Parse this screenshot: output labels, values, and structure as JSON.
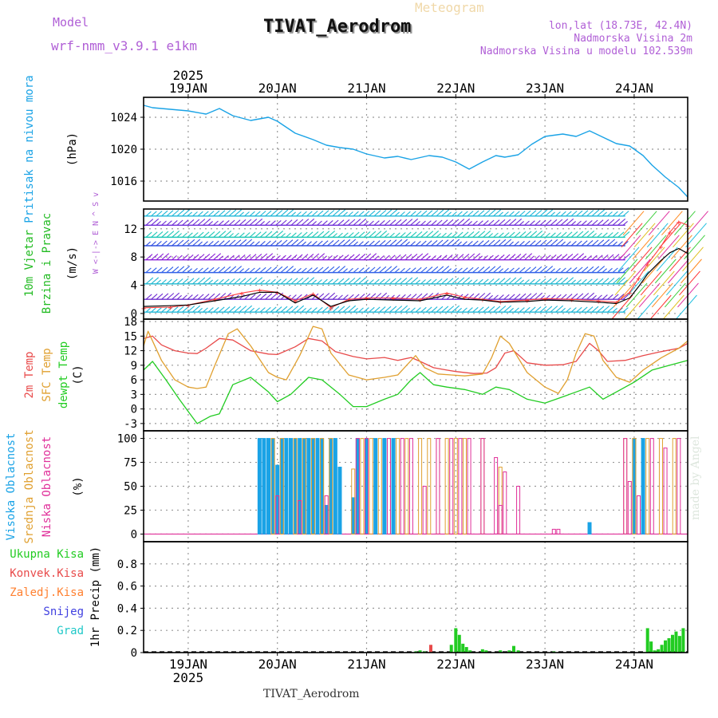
{
  "header": {
    "model_label": "Model",
    "model_name": "wrf-nmm_v3.9.1 e1km",
    "meteogram_label": "Meteogram",
    "station": "TIVAT_Aerodrom",
    "lonlat": "lon,lat (18.73E, 42.4N)",
    "elevation": "Nadmorska Visina 2m",
    "model_elevation": "Nadmorska Visina u modelu 102.539m",
    "footer_station": "TIVAT_Aerodrom",
    "watermark": "made by Angel"
  },
  "colors": {
    "pressure": "#1aa3e6",
    "t2m": "#e84a4a",
    "tsfc": "#e0a030",
    "dewpoint": "#22cc22",
    "high_cloud": "#1aa3e6",
    "mid_cloud": "#e0a030",
    "low_cloud": "#e0309a",
    "total_precip": "#22cc22",
    "convective": "#e84a4a",
    "freezing": "#ff8030",
    "snow": "#4040e0",
    "graupel": "#20c8c8",
    "wind_speed": "#000000",
    "gust": "#ff4040",
    "purple_text": "#b05fd6"
  },
  "chart_data": [
    {
      "type": "line",
      "ylabel": [
        "Pritisak na nivou mora",
        "(hPa)"
      ],
      "ylim": [
        1013.5,
        1026.5
      ],
      "yticks": [
        1016,
        1020,
        1024
      ],
      "grid": true,
      "x_top_labels": [
        "19JAN",
        "20JAN",
        "21JAN",
        "22JAN",
        "23JAN",
        "24JAN"
      ],
      "x_top_year": "2025",
      "series": [
        {
          "x": [
            -0.5,
            -0.4,
            -0.2,
            0.0,
            0.2,
            0.35,
            0.5,
            0.7,
            0.9,
            1.0,
            1.2,
            1.4,
            1.55,
            1.7,
            1.85,
            2.0,
            2.2,
            2.35,
            2.5,
            2.7,
            2.85,
            3.0,
            3.15,
            3.3,
            3.45,
            3.55,
            3.7,
            3.85,
            4.0,
            4.2,
            4.35,
            4.5,
            4.65,
            4.8,
            4.95,
            5.1,
            5.2,
            5.35,
            5.5,
            5.6
          ],
          "values": [
            1025.5,
            1025.2,
            1025.0,
            1024.8,
            1024.4,
            1025.1,
            1024.2,
            1023.6,
            1024.0,
            1023.5,
            1022.0,
            1021.2,
            1020.5,
            1020.2,
            1020.0,
            1019.4,
            1018.9,
            1019.1,
            1018.7,
            1019.2,
            1019.0,
            1018.4,
            1017.5,
            1018.4,
            1019.2,
            1019.0,
            1019.3,
            1020.6,
            1021.6,
            1021.9,
            1021.6,
            1022.3,
            1021.5,
            1020.7,
            1020.4,
            1019.2,
            1018.0,
            1016.5,
            1015.2,
            1014.0
          ]
        }
      ]
    },
    {
      "type": "line",
      "ylabel": [
        "10m Vjetar",
        "Brzina i Pravac",
        "(m/s)"
      ],
      "direction_legend": "W <-|-> E N ^ S v",
      "ylim": [
        -0.8,
        14.8
      ],
      "yticks": [
        0,
        4,
        8,
        12
      ],
      "grid": true,
      "series": [
        {
          "name": "wind speed",
          "x": [
            -0.5,
            -0.2,
            0.0,
            0.3,
            0.6,
            0.8,
            1.0,
            1.2,
            1.4,
            1.6,
            1.8,
            2.0,
            2.3,
            2.6,
            2.9,
            3.1,
            3.3,
            3.5,
            3.8,
            4.0,
            4.3,
            4.6,
            4.8,
            4.95,
            5.05,
            5.15,
            5.3,
            5.4,
            5.5,
            5.6
          ],
          "values": [
            1.0,
            1.1,
            1.2,
            1.8,
            2.4,
            3.0,
            3.0,
            1.5,
            2.6,
            1.0,
            1.8,
            2.0,
            1.9,
            1.8,
            2.6,
            2.0,
            1.9,
            1.6,
            1.7,
            1.9,
            1.8,
            1.6,
            1.4,
            2.2,
            3.8,
            5.6,
            7.5,
            8.6,
            9.2,
            8.5
          ]
        },
        {
          "name": "gust",
          "x": [
            -0.5,
            -0.2,
            0.0,
            0.3,
            0.6,
            0.8,
            1.0,
            1.2,
            1.4,
            1.6,
            1.8,
            2.0,
            2.3,
            2.6,
            2.9,
            3.1,
            3.3,
            3.5,
            3.8,
            4.0,
            4.3,
            4.6,
            4.8,
            4.95,
            5.05,
            5.15,
            5.3,
            5.4,
            5.5,
            5.6
          ],
          "values": [
            0.8,
            0.9,
            1.2,
            2.0,
            2.9,
            3.3,
            3.0,
            1.8,
            2.8,
            0.8,
            2.0,
            2.2,
            2.2,
            2.0,
            2.9,
            2.3,
            2.0,
            1.7,
            1.9,
            2.1,
            2.0,
            1.8,
            1.6,
            3.0,
            5.0,
            7.0,
            9.5,
            11.5,
            13.0,
            12.5
          ]
        }
      ]
    },
    {
      "type": "line",
      "ylabel": [
        "2m Temp",
        "SFC Temp",
        "dewpt Temp",
        "(C)"
      ],
      "ylim": [
        -4.5,
        18.5
      ],
      "yticks": [
        -3,
        0,
        3,
        6,
        9,
        12,
        15,
        18
      ],
      "grid": true,
      "series": [
        {
          "name": "2m Temp",
          "x": [
            -0.5,
            -0.4,
            -0.3,
            -0.15,
            0.0,
            0.1,
            0.2,
            0.35,
            0.5,
            0.7,
            0.9,
            1.0,
            1.2,
            1.35,
            1.5,
            1.65,
            1.85,
            2.0,
            2.2,
            2.35,
            2.5,
            2.6,
            2.75,
            2.9,
            3.0,
            3.2,
            3.35,
            3.45,
            3.55,
            3.65,
            3.8,
            4.0,
            4.2,
            4.35,
            4.5,
            4.6,
            4.7,
            4.9,
            5.1,
            5.3,
            5.5,
            5.6
          ],
          "values": [
            14.5,
            15.0,
            13.2,
            12.0,
            11.5,
            11.4,
            12.5,
            14.5,
            14.2,
            12.0,
            11.3,
            11.2,
            12.8,
            14.5,
            14.0,
            11.8,
            10.8,
            10.3,
            10.6,
            10.0,
            10.6,
            9.8,
            8.5,
            8.0,
            7.7,
            7.3,
            7.4,
            8.5,
            11.5,
            12.0,
            9.5,
            9.0,
            9.1,
            9.8,
            13.5,
            12.0,
            9.8,
            10.0,
            11.0,
            11.8,
            12.5,
            13.5
          ]
        },
        {
          "name": "SFC Temp",
          "x": [
            -0.5,
            -0.45,
            -0.3,
            -0.15,
            0.0,
            0.1,
            0.2,
            0.3,
            0.45,
            0.55,
            0.7,
            0.9,
            1.0,
            1.1,
            1.25,
            1.4,
            1.5,
            1.6,
            1.8,
            2.0,
            2.2,
            2.35,
            2.45,
            2.55,
            2.65,
            2.8,
            2.95,
            3.1,
            3.3,
            3.4,
            3.5,
            3.6,
            3.8,
            4.0,
            4.15,
            4.25,
            4.35,
            4.45,
            4.55,
            4.65,
            4.8,
            4.95,
            5.1,
            5.3,
            5.5,
            5.6
          ],
          "values": [
            13.0,
            16.0,
            10.0,
            6.0,
            4.5,
            4.2,
            4.5,
            9.0,
            15.5,
            16.5,
            13.0,
            7.5,
            6.5,
            6.0,
            11.0,
            17.0,
            16.5,
            11.5,
            7.0,
            6.0,
            6.5,
            7.0,
            9.0,
            11.0,
            8.5,
            7.2,
            7.0,
            6.8,
            7.2,
            10.5,
            15.0,
            13.5,
            7.5,
            4.5,
            3.2,
            6.0,
            11.5,
            15.5,
            15.0,
            10.0,
            6.5,
            5.5,
            8.0,
            10.5,
            12.5,
            14.0
          ]
        },
        {
          "name": "dewpt Temp",
          "x": [
            -0.5,
            -0.4,
            -0.25,
            -0.1,
            0.0,
            0.1,
            0.25,
            0.35,
            0.5,
            0.7,
            0.9,
            1.0,
            1.15,
            1.35,
            1.5,
            1.7,
            1.85,
            2.0,
            2.2,
            2.35,
            2.5,
            2.6,
            2.75,
            2.9,
            3.1,
            3.3,
            3.45,
            3.6,
            3.8,
            4.0,
            4.2,
            4.35,
            4.5,
            4.65,
            4.8,
            5.0,
            5.2,
            5.4,
            5.6
          ],
          "values": [
            8.0,
            9.8,
            6.0,
            2.0,
            -0.5,
            -3.0,
            -1.5,
            -1.0,
            5.0,
            6.5,
            3.5,
            1.5,
            3.0,
            6.5,
            6.0,
            3.0,
            0.5,
            0.5,
            2.0,
            3.0,
            6.0,
            7.5,
            5.0,
            4.5,
            4.0,
            3.0,
            4.5,
            4.0,
            2.0,
            1.2,
            2.5,
            3.5,
            4.5,
            2.0,
            3.5,
            5.5,
            8.0,
            9.0,
            10.0
          ]
        }
      ]
    },
    {
      "type": "bar",
      "ylabel": [
        "Visoka Oblacnost",
        "Srednja Oblacnost",
        "Niska Oblacnost",
        "(%)"
      ],
      "ylim": [
        -8,
        108
      ],
      "yticks": [
        0,
        25,
        50,
        75,
        100
      ],
      "grid": true,
      "series": [
        {
          "name": "Visoka Oblacnost",
          "x": [
            0.8,
            0.85,
            0.9,
            0.95,
            1.0,
            1.05,
            1.1,
            1.15,
            1.2,
            1.25,
            1.3,
            1.35,
            1.4,
            1.45,
            1.5,
            1.55,
            1.6,
            1.65,
            1.7,
            1.85,
            1.9,
            2.0,
            2.1,
            2.2,
            2.3,
            4.5,
            5.0,
            5.1
          ],
          "values": [
            100,
            100,
            100,
            100,
            72,
            100,
            100,
            100,
            100,
            100,
            100,
            100,
            100,
            100,
            100,
            30,
            100,
            100,
            70,
            38,
            100,
            100,
            100,
            100,
            100,
            12,
            100,
            100
          ]
        },
        {
          "name": "Srednja Oblacnost",
          "x": [
            0.95,
            1.05,
            1.2,
            1.3,
            1.4,
            1.5,
            1.6,
            1.85,
            1.95,
            2.05,
            2.15,
            2.25,
            2.35,
            2.45,
            2.6,
            2.7,
            2.8,
            2.9,
            3.0,
            3.1,
            3.3,
            3.5,
            4.9,
            5.0,
            5.15,
            5.3,
            5.45
          ],
          "values": [
            100,
            100,
            100,
            100,
            100,
            100,
            100,
            68,
            100,
            100,
            100,
            100,
            100,
            100,
            100,
            100,
            100,
            100,
            100,
            100,
            100,
            70,
            100,
            100,
            100,
            100,
            100
          ]
        },
        {
          "name": "Niska Oblacnost",
          "x": [
            1.0,
            1.25,
            1.55,
            1.9,
            2.0,
            2.25,
            2.4,
            2.5,
            2.65,
            2.8,
            2.95,
            3.05,
            3.15,
            3.3,
            3.45,
            3.5,
            3.55,
            3.7,
            4.1,
            4.15,
            4.9,
            4.95,
            5.05,
            5.2,
            5.35,
            5.5
          ],
          "values": [
            40,
            35,
            40,
            100,
            100,
            100,
            100,
            100,
            50,
            100,
            100,
            100,
            100,
            100,
            80,
            30,
            65,
            50,
            5,
            5,
            100,
            55,
            40,
            100,
            90,
            100
          ]
        }
      ]
    },
    {
      "type": "bar",
      "ylabel": [
        "1hr Precip (mm)"
      ],
      "legend": [
        "Ukupna Kisa",
        "Konvek.Kisa",
        "Zaledj.Kisa",
        "Snijeg",
        "Grad"
      ],
      "ylim": [
        0,
        1.0
      ],
      "yticks": [
        0,
        0.2,
        0.4,
        0.6,
        0.8
      ],
      "grid": true,
      "x_bottom_labels": [
        "19JAN",
        "20JAN",
        "21JAN",
        "22JAN",
        "23JAN",
        "24JAN"
      ],
      "x_bottom_year": "2025",
      "series": [
        {
          "name": "Ukupna Kisa",
          "x": [
            2.55,
            2.6,
            2.65,
            2.95,
            3.0,
            3.04,
            3.08,
            3.12,
            3.16,
            3.3,
            3.34,
            3.5,
            3.6,
            3.65,
            3.7,
            4.1,
            5.15,
            5.19,
            5.23,
            5.27,
            5.31,
            5.35,
            5.39,
            5.43,
            5.47,
            5.51,
            5.55
          ],
          "values": [
            0.01,
            0.02,
            0.01,
            0.07,
            0.22,
            0.16,
            0.08,
            0.05,
            0.02,
            0.03,
            0.02,
            0.02,
            0.02,
            0.06,
            0.02,
            0.01,
            0.22,
            0.1,
            0.02,
            0.03,
            0.07,
            0.11,
            0.13,
            0.16,
            0.19,
            0.15,
            0.22
          ]
        },
        {
          "name": "Konvek.Kisa",
          "x": [
            2.72
          ],
          "values": [
            0.07
          ]
        }
      ]
    }
  ]
}
